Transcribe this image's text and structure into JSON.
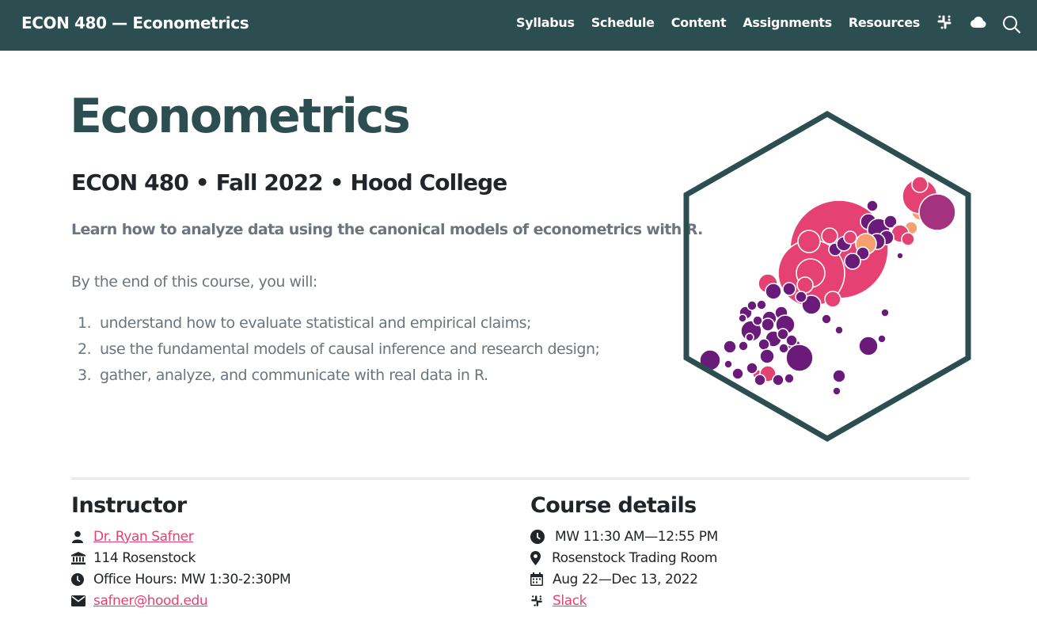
{
  "navbar": {
    "brand": "ECON 480 — Econometrics",
    "links": [
      "Syllabus",
      "Schedule",
      "Content",
      "Assignments",
      "Resources"
    ],
    "icons": [
      "slack-icon",
      "cloud-icon"
    ],
    "search_icon": "search-icon"
  },
  "hero": {
    "title": "Econometrics",
    "subtitle": "ECON 480 • Fall 2022 • Hood College",
    "description": "Learn how to analyze data using the canonical models of econometrics with R.",
    "intro": "By the end of this course, you will:",
    "goals": [
      {
        "num": "1.",
        "text": "understand how to evaluate statistical and empirical claims;"
      },
      {
        "num": "2.",
        "text": "use the fundamental models of causal inference and research design;"
      },
      {
        "num": "3.",
        "text": "gather, analyze, and communicate with real data in R."
      }
    ]
  },
  "instructor": {
    "heading": "Instructor",
    "name": "Dr. Ryan Safner",
    "office": "114 Rosenstock",
    "hours": "Office Hours: MW 1:30-2:30PM",
    "email": "safner@hood.edu"
  },
  "course": {
    "heading": "Course details",
    "time": "MW 11:30 AM—12:55 PM",
    "location": "Rosenstock Trading Room",
    "dates": "Aug 22—Dec 13, 2022",
    "slack": "Slack"
  },
  "colors": {
    "navbar": "#2d4e50",
    "accent": "#e64173",
    "purple": "#6a1b7a",
    "orange": "#f6a06f"
  }
}
